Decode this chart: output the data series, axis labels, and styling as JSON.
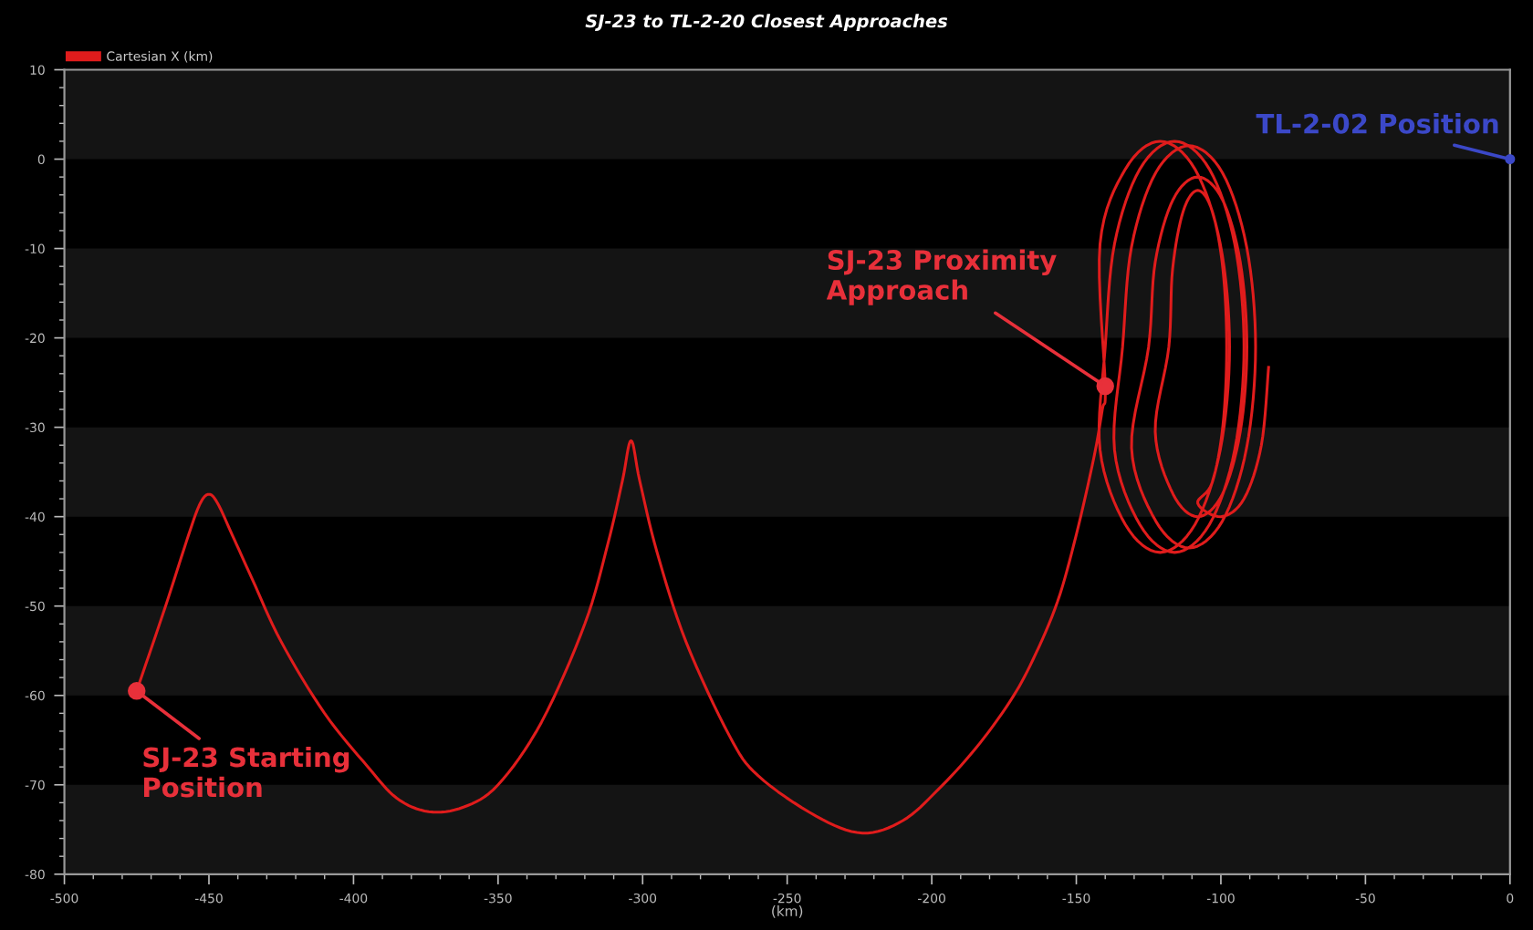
{
  "chart_data": {
    "type": "line",
    "title": "SJ-23 to TL-2-20 Closest Approaches",
    "xlabel": "(km)",
    "xlim": [
      -500,
      0
    ],
    "xticks": [
      -500,
      -450,
      -400,
      -350,
      -300,
      -250,
      -200,
      -150,
      -100,
      -50,
      0
    ],
    "ylim": [
      -80,
      10
    ],
    "yticks": [
      10,
      0,
      -10,
      -20,
      -30,
      -40,
      -50,
      -60,
      -70,
      -80
    ],
    "legend": "top left",
    "bands": [
      {
        "axis": "y",
        "from": 0,
        "to": 10,
        "color": "#141414"
      },
      {
        "axis": "y",
        "from": -20,
        "to": -10,
        "color": "#141414"
      },
      {
        "axis": "y",
        "from": -40,
        "to": -30,
        "color": "#141414"
      },
      {
        "axis": "y",
        "from": -60,
        "to": -50,
        "color": "#141414"
      },
      {
        "axis": "y",
        "from": -80,
        "to": -70,
        "color": "#141414"
      }
    ],
    "line_style": "solid",
    "marker": "none",
    "series": [
      {
        "name": "Cartesian X (km)",
        "color": "#e01c1c",
        "x": [
          -475,
          -465,
          -457,
          -453,
          -450,
          -447,
          -442,
          -435,
          -425,
          -410,
          -395,
          -385,
          -374,
          -362,
          -350,
          -335,
          -320,
          -312,
          -307,
          -304,
          -301,
          -295,
          -285,
          -270,
          -260,
          -240,
          -224,
          -210,
          -198,
          -185,
          -173,
          -165,
          -156.5,
          -150,
          -144,
          -141,
          -140,
          -141.8,
          -133,
          -121,
          -109,
          -100.2,
          -97,
          -100.2,
          -109,
          -121,
          -133,
          -141.8,
          -140,
          -136.8,
          -128,
          -116,
          -104,
          -95.2,
          -92,
          -95.2,
          -104,
          -116,
          -128,
          -136.8,
          -134,
          -130.9,
          -122.5,
          -111,
          -99.5,
          -91.1,
          -88,
          -91.1,
          -99.5,
          -111,
          -122.5,
          -130.9,
          -125,
          -122.7,
          -116.5,
          -108,
          -99.5,
          -93.3,
          -91,
          -93.3,
          -99.5,
          -108,
          -116.5,
          -122.7,
          -118,
          -116.7,
          -113,
          -108,
          -103,
          -99.3,
          -98,
          -99.3,
          -103,
          -108,
          -100,
          -92,
          -86,
          -83.5
        ],
        "values": [
          -59.5,
          -50,
          -42,
          -38.5,
          -37.5,
          -38.5,
          -42,
          -47,
          -54,
          -62,
          -68,
          -71.5,
          -73,
          -72.5,
          -70,
          -63,
          -52,
          -43,
          -36,
          -31.5,
          -36,
          -44,
          -54,
          -64.5,
          -69,
          -73.5,
          -75.4,
          -74,
          -70.6,
          -66,
          -60.7,
          -56,
          -49.5,
          -42,
          -33.5,
          -28,
          -25.4,
          -9.5,
          -1.1,
          2,
          -1.1,
          -9.5,
          -21,
          -32.5,
          -40.9,
          -44,
          -40.9,
          -32.5,
          -21,
          -9.5,
          -1.1,
          2,
          -1.1,
          -9.5,
          -21,
          -32.5,
          -40.9,
          -44,
          -40.9,
          -32.5,
          -21,
          -9.8,
          -1.5,
          1.5,
          -1.5,
          -9.8,
          -21,
          -32.3,
          -40.5,
          -43.5,
          -40.5,
          -32.3,
          -21,
          -11.5,
          -4.5,
          -2,
          -4.5,
          -11.5,
          -21,
          -30.5,
          -37.5,
          -40,
          -37.5,
          -30.5,
          -21,
          -12.3,
          -5.8,
          -3.5,
          -5.8,
          -12.3,
          -21,
          -29.8,
          -36.2,
          -38.5,
          -40,
          -38,
          -32,
          -23.3
        ]
      }
    ],
    "annotations": [
      {
        "text": "SJ-23 Starting\nPosition",
        "x": -475,
        "y": -59.5
      },
      {
        "text": "SJ-23 Proximity\nApproach",
        "x": -140,
        "y": -25.4
      },
      {
        "text": "TL-2-02 Position",
        "x": 0,
        "y": 0
      }
    ]
  }
}
